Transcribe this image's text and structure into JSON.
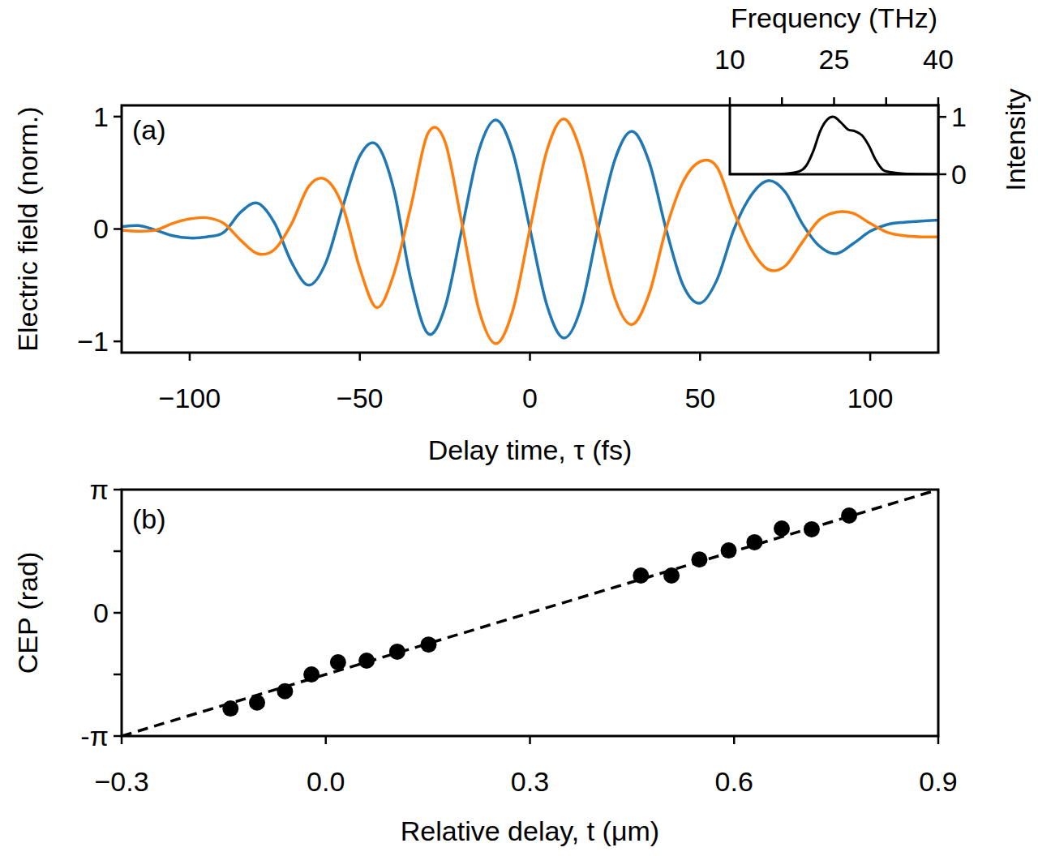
{
  "chart_data": [
    {
      "type": "line",
      "annotation": "(a)",
      "xlabel": "Delay time, τ (fs)",
      "ylabel": "Electric field (norm.)",
      "x": [
        -120,
        -115,
        -110,
        -105,
        -100,
        -95,
        -90,
        -85,
        -80,
        -75,
        -70,
        -65,
        -60,
        -55,
        -50,
        -45,
        -40,
        -35,
        -30,
        -25,
        -20,
        -15,
        -10,
        -5,
        0,
        5,
        10,
        15,
        20,
        25,
        30,
        35,
        40,
        45,
        50,
        55,
        60,
        65,
        70,
        75,
        80,
        85,
        90,
        95,
        100,
        105,
        110,
        115,
        120
      ],
      "xlim": [
        -120,
        120
      ],
      "xticks": [
        {
          "value": -100,
          "label": "−100"
        },
        {
          "value": -50,
          "label": "−50"
        },
        0,
        50,
        100
      ],
      "ylim": [
        -1.1,
        1.1
      ],
      "yticks": [
        {
          "value": -1,
          "label": "−1"
        },
        0,
        1
      ],
      "series": [
        {
          "color": "#1f77b4",
          "values": [
            0.02,
            0.03,
            -0.01,
            -0.06,
            -0.08,
            -0.07,
            -0.03,
            0.15,
            0.23,
            0.05,
            -0.3,
            -0.5,
            -0.3,
            0.2,
            0.65,
            0.75,
            0.35,
            -0.45,
            -0.93,
            -0.7,
            0.0,
            0.7,
            0.97,
            0.68,
            0.0,
            -0.68,
            -0.97,
            -0.7,
            0.0,
            0.62,
            0.87,
            0.6,
            0.0,
            -0.5,
            -0.66,
            -0.45,
            0.0,
            0.3,
            0.43,
            0.33,
            0.05,
            -0.15,
            -0.22,
            -0.13,
            -0.02,
            0.04,
            0.06,
            0.07,
            0.08
          ]
        },
        {
          "color": "#ff7f0e",
          "values": [
            -0.01,
            -0.02,
            -0.01,
            0.05,
            0.09,
            0.1,
            0.05,
            -0.1,
            -0.22,
            -0.18,
            0.05,
            0.38,
            0.44,
            0.2,
            -0.35,
            -0.7,
            -0.4,
            0.2,
            0.85,
            0.78,
            0.05,
            -0.72,
            -1.02,
            -0.72,
            0.0,
            0.7,
            0.98,
            0.68,
            0.0,
            -0.62,
            -0.85,
            -0.58,
            0.0,
            0.42,
            0.6,
            0.55,
            0.15,
            -0.18,
            -0.36,
            -0.33,
            -0.12,
            0.08,
            0.15,
            0.14,
            0.05,
            -0.03,
            -0.06,
            -0.07,
            -0.07
          ]
        }
      ]
    },
    {
      "type": "line",
      "xlabel": "Frequency (THz)",
      "ylabel": "Intensity",
      "x": [
        10,
        15,
        18,
        20,
        21,
        22,
        23,
        24,
        25,
        26,
        27,
        28,
        29,
        30,
        31,
        32,
        33,
        35,
        40
      ],
      "xlim": [
        10,
        40
      ],
      "xticks": [
        10,
        {
          "value": 17.5,
          "label": null
        },
        25,
        {
          "value": 32.5,
          "label": null
        },
        40
      ],
      "ylim": [
        0,
        1.2
      ],
      "yticks": [
        0,
        1
      ],
      "series": [
        {
          "color": "#000000",
          "values": [
            0,
            0,
            0.01,
            0.05,
            0.15,
            0.4,
            0.75,
            0.95,
            1.0,
            0.9,
            0.78,
            0.75,
            0.68,
            0.5,
            0.25,
            0.08,
            0.04,
            0.01,
            0
          ]
        }
      ]
    },
    {
      "type": "scatter",
      "annotation": "(b)",
      "xlabel": "Relative delay, t (μm)",
      "ylabel": "CEP (rad)",
      "xlim": [
        -0.3,
        0.9
      ],
      "xticks": [
        {
          "value": -0.3,
          "label": "−0.3"
        },
        {
          "value": 0,
          "label": "0.0"
        },
        0.3,
        0.6,
        0.9
      ],
      "ylim": [
        -3.14159,
        3.14159
      ],
      "yticks": [
        {
          "value": -3.14159,
          "label": "-π"
        },
        {
          "value": -1.5708,
          "label": null
        },
        0,
        {
          "value": 1.5708,
          "label": null
        },
        {
          "value": 3.14159,
          "label": "π"
        }
      ],
      "series": [
        {
          "type": "scatter",
          "marker": "circle",
          "color": "#000000",
          "x": [
            -0.14,
            -0.101,
            -0.06,
            -0.021,
            0.018,
            0.06,
            0.105,
            0.151,
            0.463,
            0.508,
            0.549,
            0.592,
            0.63,
            0.67,
            0.714,
            0.769
          ],
          "values": [
            -2.44,
            -2.29,
            -2.0,
            -1.57,
            -1.26,
            -1.22,
            -0.99,
            -0.81,
            0.95,
            0.95,
            1.36,
            1.59,
            1.8,
            2.15,
            2.13,
            2.48
          ]
        },
        {
          "type": "line",
          "line_style": "dashed",
          "color": "#000000",
          "x": [
            -0.3,
            0.9
          ],
          "values": [
            -3.14159,
            3.14159
          ]
        }
      ]
    }
  ]
}
